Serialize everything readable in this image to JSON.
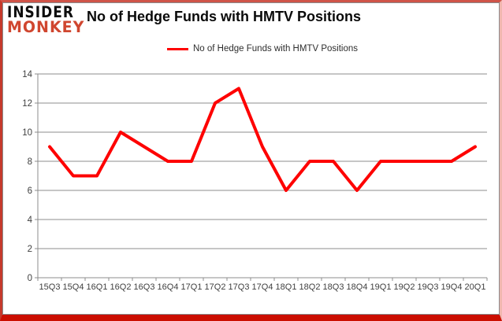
{
  "logo": {
    "line1": "INSIDER",
    "line2": "MONKEY"
  },
  "title": "No of Hedge Funds with HMTV Positions",
  "legend": {
    "label": "No of Hedge Funds with HMTV Positions"
  },
  "chart_data": {
    "type": "line",
    "title": "No of Hedge Funds with HMTV Positions",
    "categories": [
      "15Q3",
      "15Q4",
      "16Q1",
      "16Q2",
      "16Q3",
      "16Q4",
      "17Q1",
      "17Q2",
      "17Q3",
      "17Q4",
      "18Q1",
      "18Q2",
      "18Q3",
      "18Q4",
      "19Q1",
      "19Q2",
      "19Q3",
      "19Q4",
      "20Q1"
    ],
    "series": [
      {
        "name": "No of Hedge Funds with HMTV Positions",
        "values": [
          9,
          7,
          7,
          10,
          9,
          8,
          8,
          12,
          13,
          9,
          6,
          8,
          8,
          6,
          8,
          8,
          8,
          8,
          9
        ]
      }
    ],
    "ylim": [
      0,
      14
    ],
    "ytick_step": 2,
    "grid": true,
    "legend_position": "top-center",
    "colors": {
      "line": "#fe0000",
      "grid": "#8c8c8c",
      "axis": "#8c8c8c",
      "tick_label": "#3f3f3f"
    }
  }
}
